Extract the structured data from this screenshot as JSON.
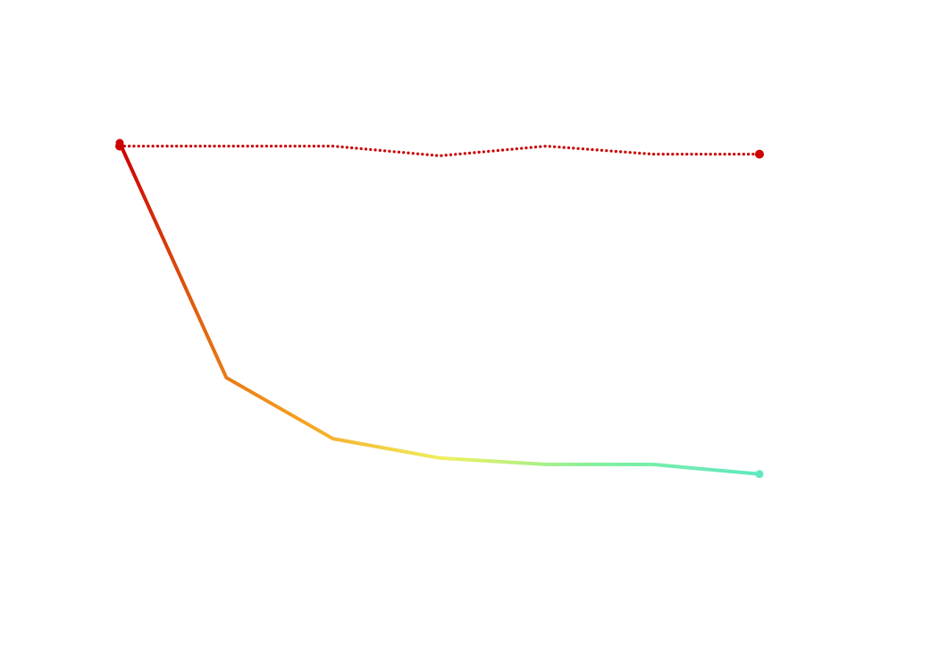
{
  "chart_data": {
    "type": "line",
    "title": "",
    "xlabel": "",
    "ylabel": "",
    "grid": false,
    "legend": "none",
    "x": [
      0,
      1,
      2,
      3,
      4,
      5,
      6
    ],
    "xlim": [
      0,
      6
    ],
    "ylim": [
      0,
      1
    ],
    "series": [
      {
        "style": "dotted",
        "color": "#cc0000",
        "endpoint_markers": true,
        "values": [
          0.99,
          0.99,
          0.99,
          0.96,
          0.99,
          0.965,
          0.965
        ]
      },
      {
        "style": "solid",
        "gradient": [
          "#cc0000",
          "#e06010",
          "#f5a020",
          "#f0f060",
          "#80f0a0",
          "#60e8c0"
        ],
        "endpoint_markers": true,
        "values": [
          1.0,
          0.27,
          0.08,
          0.02,
          0.0,
          0.0,
          -0.03
        ]
      }
    ]
  }
}
